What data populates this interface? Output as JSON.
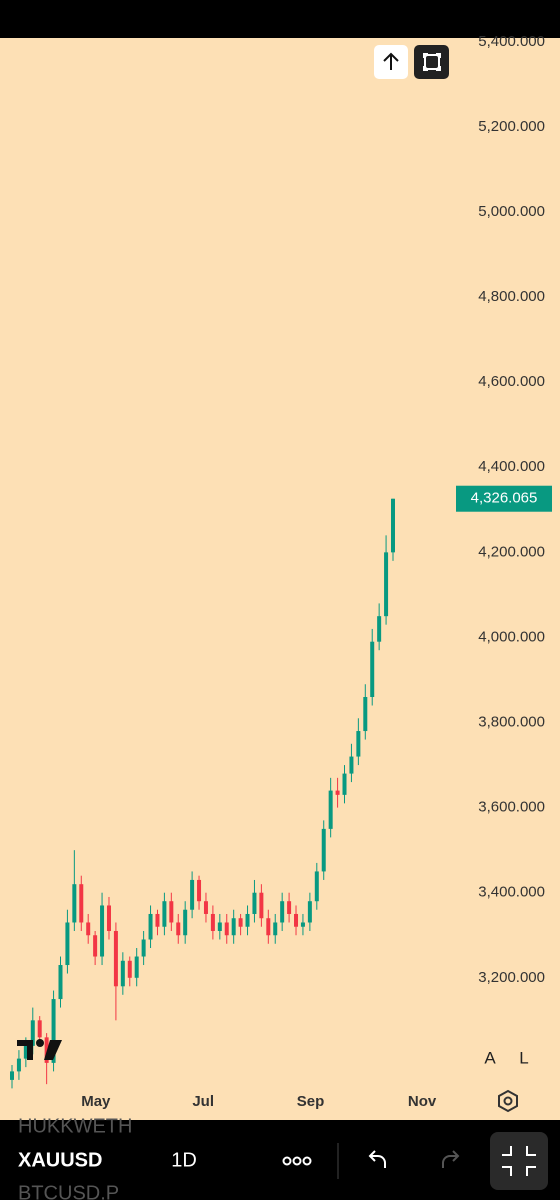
{
  "chart_data": {
    "type": "candlestick",
    "symbol": "XAUUSD",
    "interval": "1D",
    "watchlist_above": "HUKKWETH",
    "watchlist_below": "BTCUSD.P",
    "scale_buttons": [
      "A",
      "L"
    ],
    "categories": [
      null,
      null,
      null,
      null,
      null,
      null,
      null,
      null,
      null,
      null,
      null,
      null,
      null,
      null,
      null,
      null,
      null,
      null,
      null,
      null,
      null,
      null,
      null,
      null,
      null,
      null,
      null,
      null,
      null,
      null,
      null,
      null,
      null,
      null,
      null,
      null,
      null,
      null,
      null,
      null,
      null,
      null,
      null,
      null,
      null,
      null,
      null,
      null,
      null,
      null,
      null,
      null,
      null,
      null,
      null,
      null
    ],
    "open": [
      2960,
      2980,
      3010,
      3040,
      3100,
      3060,
      3000,
      3150,
      3230,
      3330,
      3420,
      3330,
      3300,
      3250,
      3370,
      3310,
      3180,
      3240,
      3200,
      3250,
      3290,
      3350,
      3320,
      3380,
      3330,
      3300,
      3360,
      3430,
      3380,
      3350,
      3310,
      3330,
      3300,
      3340,
      3320,
      3350,
      3400,
      3340,
      3300,
      3330,
      3380,
      3350,
      3320,
      3330,
      3380,
      3450,
      3550,
      3640,
      3630,
      3680,
      3720,
      3780,
      3860,
      3990,
      4050,
      4200
    ],
    "high": [
      2995,
      3030,
      3060,
      3130,
      3110,
      3070,
      3170,
      3250,
      3360,
      3500,
      3440,
      3350,
      3310,
      3400,
      3390,
      3330,
      3260,
      3250,
      3270,
      3310,
      3370,
      3360,
      3400,
      3400,
      3350,
      3380,
      3450,
      3440,
      3400,
      3370,
      3350,
      3350,
      3360,
      3350,
      3370,
      3430,
      3420,
      3360,
      3350,
      3400,
      3400,
      3370,
      3350,
      3400,
      3470,
      3570,
      3670,
      3670,
      3700,
      3750,
      3810,
      3890,
      4020,
      4080,
      4240,
      4326.065
    ],
    "low": [
      2940,
      2960,
      2990,
      3020,
      3040,
      2950,
      2980,
      3130,
      3210,
      3310,
      3310,
      3280,
      3230,
      3230,
      3290,
      3100,
      3160,
      3180,
      3180,
      3230,
      3270,
      3300,
      3300,
      3310,
      3280,
      3280,
      3340,
      3360,
      3330,
      3290,
      3290,
      3280,
      3280,
      3300,
      3300,
      3330,
      3320,
      3280,
      3280,
      3310,
      3330,
      3300,
      3300,
      3310,
      3360,
      3430,
      3530,
      3600,
      3610,
      3660,
      3700,
      3760,
      3840,
      3970,
      4030,
      4180
    ],
    "close": [
      2980,
      3010,
      3040,
      3100,
      3060,
      3000,
      3150,
      3230,
      3330,
      3420,
      3330,
      3300,
      3250,
      3370,
      3310,
      3180,
      3240,
      3200,
      3250,
      3290,
      3350,
      3320,
      3380,
      3330,
      3300,
      3360,
      3430,
      3380,
      3350,
      3310,
      3330,
      3300,
      3340,
      3320,
      3350,
      3400,
      3340,
      3300,
      3330,
      3380,
      3350,
      3320,
      3330,
      3380,
      3450,
      3550,
      3640,
      3630,
      3680,
      3720,
      3780,
      3860,
      3990,
      4050,
      4200,
      4326.065
    ],
    "up_color": "#089981",
    "down_color": "#f23645",
    "background": "#fde0b5",
    "last_price": {
      "value": 4326.065,
      "label": "4,326.065"
    },
    "ylim": [
      2948,
      5409
    ],
    "yticks": [
      {
        "value": 3200,
        "label": "3,200.000"
      },
      {
        "value": 3400,
        "label": "3,400.000"
      },
      {
        "value": 3600,
        "label": "3,600.000"
      },
      {
        "value": 3800,
        "label": "3,800.000"
      },
      {
        "value": 4000,
        "label": "4,000.000"
      },
      {
        "value": 4200,
        "label": "4,200.000"
      },
      {
        "value": 4400,
        "label": "4,400.000"
      },
      {
        "value": 4600,
        "label": "4,600.000"
      },
      {
        "value": 4800,
        "label": "4,800.000"
      },
      {
        "value": 5000,
        "label": "5,000.000"
      },
      {
        "value": 5200,
        "label": "5,200.000"
      },
      {
        "value": 5400,
        "label": "5,400.000"
      }
    ],
    "xlim": [
      -1.7,
      71.4
    ],
    "xticks": [
      {
        "value": 12.1,
        "label": "May"
      },
      {
        "value": 27.6,
        "label": "Jul"
      },
      {
        "value": 43.1,
        "label": "Sep"
      },
      {
        "value": 59.2,
        "label": "Nov"
      }
    ]
  }
}
